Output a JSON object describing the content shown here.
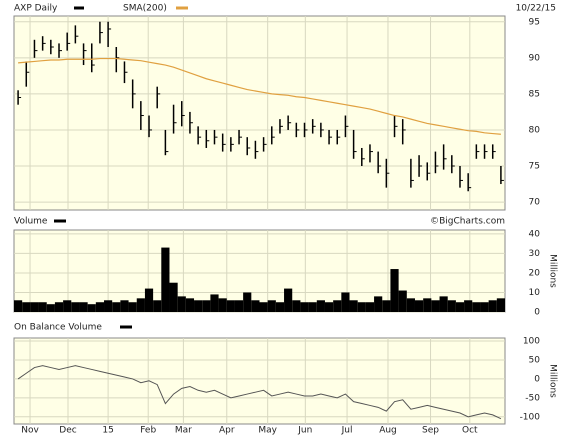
{
  "chart_data": [
    {
      "type": "ohlc",
      "title": "AXP Daily",
      "date": "10/22/15",
      "color": "#000000",
      "high": [
        85.5,
        89.5,
        92.5,
        93,
        92.5,
        92,
        93.5,
        94.5,
        92,
        92,
        95,
        95,
        91.5,
        89.5,
        87,
        84,
        82,
        86,
        80,
        83.5,
        84,
        82.5,
        80.5,
        80,
        80,
        79.5,
        79,
        80,
        79,
        78.5,
        79,
        80.5,
        81.5,
        82,
        81,
        81,
        81.5,
        81,
        80,
        80,
        82,
        80,
        77.5,
        78,
        77,
        76,
        82,
        81.5,
        76,
        76.5,
        75.5,
        77,
        78,
        76.5,
        75,
        74,
        78,
        78,
        78,
        75
      ],
      "low": [
        83.5,
        86,
        90,
        91,
        90.5,
        90,
        91,
        92,
        89,
        88,
        92,
        91.5,
        88,
        86.5,
        83,
        80,
        79,
        83,
        76.5,
        79.5,
        80.5,
        79.5,
        78,
        77.5,
        78,
        77,
        77,
        78,
        76.5,
        76,
        77,
        78,
        79.5,
        80,
        79,
        79,
        79.5,
        79,
        78,
        78,
        79,
        76,
        75,
        75.5,
        74,
        72,
        79,
        78,
        72,
        73.5,
        73,
        74,
        74.5,
        74,
        72,
        71.5,
        76,
        76,
        76,
        72.5
      ],
      "close": [
        84.5,
        88,
        91,
        92,
        91.5,
        91,
        92,
        93,
        91,
        89,
        93.5,
        94,
        90,
        88,
        85,
        82,
        80,
        85,
        77,
        81,
        82,
        81,
        79,
        78.5,
        79,
        78,
        78,
        79,
        77.5,
        77,
        78,
        79,
        80.5,
        81,
        80,
        80,
        80.5,
        80,
        79,
        79,
        80.5,
        77,
        76,
        77,
        75,
        74,
        80.5,
        80,
        73,
        75,
        74,
        75,
        76,
        75,
        73,
        72,
        77,
        77,
        77,
        73
      ],
      "overlay": {
        "name": "SMA(200)",
        "color": "#e0a040",
        "values": [
          89.3,
          89.4,
          89.5,
          89.6,
          89.7,
          89.7,
          89.8,
          89.8,
          89.8,
          89.8,
          89.9,
          89.9,
          89.9,
          89.8,
          89.7,
          89.6,
          89.4,
          89.2,
          89.0,
          88.7,
          88.3,
          87.9,
          87.5,
          87.1,
          86.8,
          86.5,
          86.2,
          85.9,
          85.6,
          85.4,
          85.2,
          85.0,
          84.9,
          84.8,
          84.6,
          84.5,
          84.3,
          84.1,
          83.9,
          83.7,
          83.5,
          83.3,
          83.1,
          82.9,
          82.6,
          82.3,
          82.0,
          81.8,
          81.5,
          81.2,
          80.9,
          80.7,
          80.5,
          80.3,
          80.1,
          79.9,
          79.8,
          79.6,
          79.5,
          79.4
        ]
      },
      "xlim": [
        0,
        60
      ],
      "ylim": [
        68.9,
        95.8
      ],
      "yticks": [
        70,
        75,
        80,
        85,
        90,
        95
      ],
      "grid": true
    },
    {
      "type": "volume",
      "title": "Volume",
      "credit": "©BigCharts.com",
      "ylabel": "Millions",
      "color": "#000000",
      "values": [
        6,
        5,
        5,
        5,
        4,
        5,
        6,
        5,
        5,
        4,
        5,
        6,
        5,
        6,
        5,
        7,
        12,
        6,
        33,
        15,
        8,
        7,
        6,
        6,
        9,
        7,
        6,
        6,
        10,
        6,
        5,
        6,
        5,
        12,
        6,
        5,
        5,
        6,
        5,
        6,
        10,
        6,
        5,
        5,
        8,
        6,
        22,
        11,
        7,
        6,
        7,
        6,
        8,
        6,
        5,
        6,
        5,
        5,
        6,
        7
      ],
      "xlim": [
        0,
        60
      ],
      "ylim": [
        0,
        42
      ],
      "yticks": [
        0,
        10,
        20,
        30,
        40
      ],
      "grid": true
    },
    {
      "type": "line",
      "title": "On Balance Volume",
      "ylabel": "Millions",
      "color": "#555555",
      "values": [
        0,
        15,
        30,
        35,
        30,
        25,
        30,
        35,
        30,
        25,
        20,
        15,
        10,
        5,
        0,
        -10,
        -5,
        -15,
        -65,
        -40,
        -25,
        -20,
        -30,
        -35,
        -30,
        -40,
        -50,
        -45,
        -40,
        -35,
        -30,
        -45,
        -40,
        -35,
        -40,
        -45,
        -45,
        -40,
        -45,
        -50,
        -40,
        -60,
        -65,
        -70,
        -75,
        -85,
        -60,
        -55,
        -80,
        -75,
        -70,
        -75,
        -80,
        -85,
        -90,
        -100,
        -95,
        -90,
        -95,
        -105
      ],
      "xlim": [
        0,
        60
      ],
      "ylim": [
        -119,
        108
      ],
      "yticks": [
        -100,
        -50,
        0,
        50,
        100
      ],
      "grid": true,
      "xticks": [
        {
          "value": 1.96,
          "label": "Nov"
        },
        {
          "value": 6.6,
          "label": "Dec"
        },
        {
          "value": 11.5,
          "label": "15"
        },
        {
          "value": 16.4,
          "label": "Feb"
        },
        {
          "value": 20.7,
          "label": "Mar"
        },
        {
          "value": 26.0,
          "label": "Apr"
        },
        {
          "value": 31.0,
          "label": "May"
        },
        {
          "value": 35.6,
          "label": "Jun"
        },
        {
          "value": 40.7,
          "label": "Jul"
        },
        {
          "value": 45.7,
          "label": "Aug"
        },
        {
          "value": 50.9,
          "label": "Sep"
        },
        {
          "value": 55.7,
          "label": "Oct"
        }
      ]
    }
  ]
}
